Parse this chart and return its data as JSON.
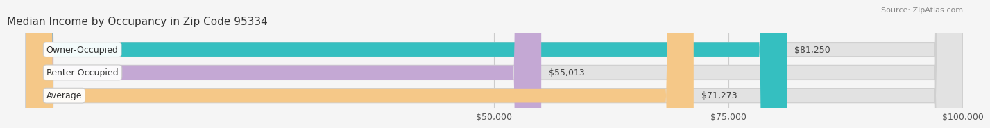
{
  "title": "Median Income by Occupancy in Zip Code 95334",
  "source": "Source: ZipAtlas.com",
  "categories": [
    "Owner-Occupied",
    "Renter-Occupied",
    "Average"
  ],
  "values": [
    81250,
    55013,
    71273
  ],
  "bar_colors": [
    "#35bfc0",
    "#c4a8d4",
    "#f5c888"
  ],
  "bar_bg_color": "#e2e2e2",
  "bar_labels": [
    "$81,250",
    "$55,013",
    "$71,273"
  ],
  "xlim": [
    0,
    100000
  ],
  "xticks": [
    50000,
    75000,
    100000
  ],
  "xticklabels": [
    "$50,000",
    "$75,000",
    "$100,000"
  ],
  "bg_color": "#f5f5f5",
  "title_fontsize": 11,
  "source_fontsize": 8,
  "label_fontsize": 9,
  "tick_fontsize": 9,
  "value_fontsize": 9
}
